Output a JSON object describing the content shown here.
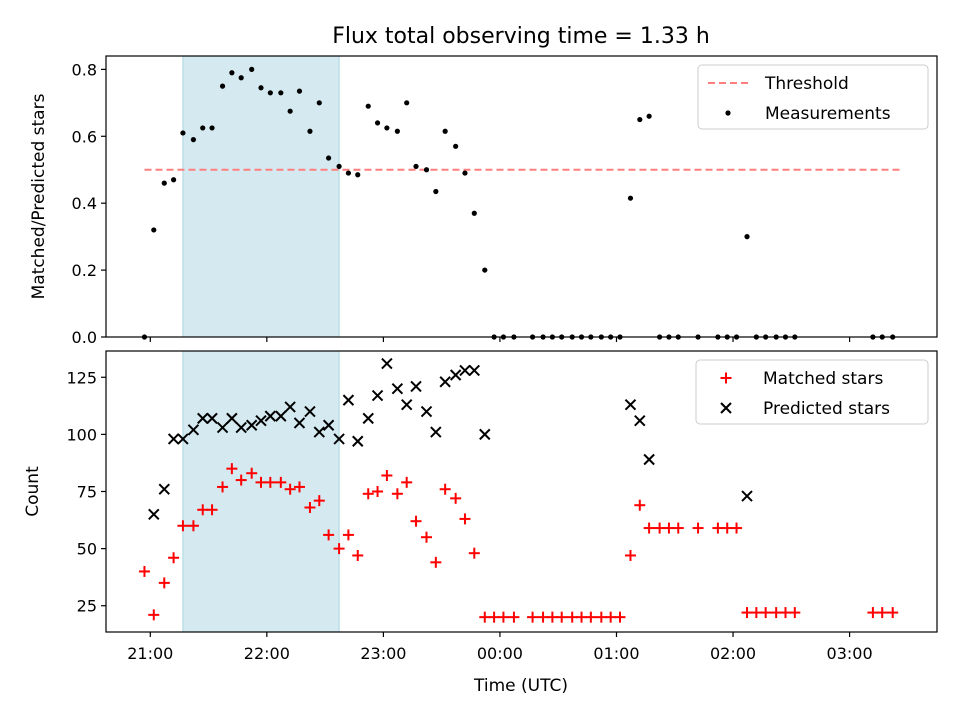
{
  "figure": {
    "title": "Flux total observing time = 1.33 h",
    "xlabel": "Time (UTC)"
  },
  "chart_data": [
    {
      "type": "scatter",
      "panel": "top",
      "ylabel": "Matched/Predicted stars",
      "xlabel": "Time (UTC)",
      "x_unit": "hours since 21:00 UTC (axis ticks shown as clock time)",
      "xlim": [
        -0.38,
        6.75
      ],
      "ylim": [
        0,
        0.84
      ],
      "x_tick_labels": [
        "21:00",
        "22:00",
        "23:00",
        "00:00",
        "01:00",
        "02:00",
        "03:00"
      ],
      "y_ticks": [
        0.0,
        0.2,
        0.4,
        0.6,
        0.8
      ],
      "y_tick_labels": [
        "0.0",
        "0.2",
        "0.4",
        "0.6",
        "0.8"
      ],
      "shaded_span": [
        0.28,
        1.62
      ],
      "threshold": {
        "name": "Threshold",
        "value": 0.5,
        "x_range": [
          -0.05,
          6.43
        ],
        "color": "#ff7f7f",
        "style": "dashed"
      },
      "legend": {
        "position": "upper right",
        "entries": [
          "Threshold",
          "Measurements"
        ]
      },
      "series": [
        {
          "name": "Measurements",
          "color": "#000000",
          "marker": "dot",
          "points": [
            [
              -0.05,
              0.0
            ],
            [
              0.03,
              0.32
            ],
            [
              0.12,
              0.46
            ],
            [
              0.2,
              0.47
            ],
            [
              0.28,
              0.61
            ],
            [
              0.37,
              0.59
            ],
            [
              0.45,
              0.625
            ],
            [
              0.53,
              0.625
            ],
            [
              0.62,
              0.75
            ],
            [
              0.7,
              0.79
            ],
            [
              0.78,
              0.775
            ],
            [
              0.87,
              0.8
            ],
            [
              0.95,
              0.745
            ],
            [
              1.03,
              0.73
            ],
            [
              1.12,
              0.73
            ],
            [
              1.2,
              0.675
            ],
            [
              1.28,
              0.735
            ],
            [
              1.37,
              0.615
            ],
            [
              1.45,
              0.7
            ],
            [
              1.53,
              0.535
            ],
            [
              1.62,
              0.51
            ],
            [
              1.7,
              0.49
            ],
            [
              1.78,
              0.485
            ],
            [
              1.87,
              0.69
            ],
            [
              1.95,
              0.64
            ],
            [
              2.03,
              0.625
            ],
            [
              2.12,
              0.615
            ],
            [
              2.2,
              0.7
            ],
            [
              2.28,
              0.51
            ],
            [
              2.37,
              0.5
            ],
            [
              2.45,
              0.435
            ],
            [
              2.53,
              0.615
            ],
            [
              2.62,
              0.57
            ],
            [
              2.7,
              0.49
            ],
            [
              2.78,
              0.37
            ],
            [
              2.87,
              0.2
            ],
            [
              2.95,
              0.0
            ],
            [
              3.03,
              0.0
            ],
            [
              3.12,
              0.0
            ],
            [
              3.28,
              0.0
            ],
            [
              3.37,
              0.0
            ],
            [
              3.45,
              0.0
            ],
            [
              3.53,
              0.0
            ],
            [
              3.62,
              0.0
            ],
            [
              3.7,
              0.0
            ],
            [
              3.78,
              0.0
            ],
            [
              3.87,
              0.0
            ],
            [
              3.95,
              0.0
            ],
            [
              4.03,
              0.0
            ],
            [
              4.12,
              0.415
            ],
            [
              4.2,
              0.65
            ],
            [
              4.28,
              0.66
            ],
            [
              4.37,
              0.0
            ],
            [
              4.45,
              0.0
            ],
            [
              4.53,
              0.0
            ],
            [
              4.7,
              0.0
            ],
            [
              4.87,
              0.0
            ],
            [
              4.95,
              0.0
            ],
            [
              5.03,
              0.0
            ],
            [
              5.12,
              0.3
            ],
            [
              5.2,
              0.0
            ],
            [
              5.28,
              0.0
            ],
            [
              5.37,
              0.0
            ],
            [
              5.45,
              0.0
            ],
            [
              5.53,
              0.0
            ],
            [
              6.2,
              0.0
            ],
            [
              6.28,
              0.0
            ],
            [
              6.37,
              0.0
            ]
          ]
        }
      ]
    },
    {
      "type": "scatter",
      "panel": "bottom",
      "ylabel": "Count",
      "xlabel": "Time (UTC)",
      "x_unit": "hours since 21:00 UTC (axis ticks shown as clock time)",
      "xlim": [
        -0.38,
        6.75
      ],
      "ylim": [
        13.5,
        136.5
      ],
      "x_tick_labels": [
        "21:00",
        "22:00",
        "23:00",
        "00:00",
        "01:00",
        "02:00",
        "03:00"
      ],
      "y_ticks": [
        25,
        50,
        75,
        100,
        125
      ],
      "y_tick_labels": [
        "25",
        "50",
        "75",
        "100",
        "125"
      ],
      "shaded_span": [
        0.28,
        1.62
      ],
      "legend": {
        "position": "upper right",
        "entries": [
          "Matched stars",
          "Predicted stars"
        ]
      },
      "series": [
        {
          "name": "Matched stars",
          "color": "#ff0000",
          "marker": "plus",
          "points": [
            [
              -0.05,
              40
            ],
            [
              0.03,
              21
            ],
            [
              0.12,
              35
            ],
            [
              0.2,
              46
            ],
            [
              0.28,
              60
            ],
            [
              0.37,
              60
            ],
            [
              0.45,
              67
            ],
            [
              0.53,
              67
            ],
            [
              0.62,
              77
            ],
            [
              0.7,
              85
            ],
            [
              0.78,
              80
            ],
            [
              0.87,
              83
            ],
            [
              0.95,
              79
            ],
            [
              1.03,
              79
            ],
            [
              1.12,
              79
            ],
            [
              1.2,
              76
            ],
            [
              1.28,
              77
            ],
            [
              1.37,
              68
            ],
            [
              1.45,
              71
            ],
            [
              1.53,
              56
            ],
            [
              1.62,
              50
            ],
            [
              1.7,
              56
            ],
            [
              1.78,
              47
            ],
            [
              1.87,
              74
            ],
            [
              1.95,
              75
            ],
            [
              2.03,
              82
            ],
            [
              2.12,
              74
            ],
            [
              2.2,
              79
            ],
            [
              2.28,
              62
            ],
            [
              2.37,
              55
            ],
            [
              2.45,
              44
            ],
            [
              2.53,
              76
            ],
            [
              2.62,
              72
            ],
            [
              2.7,
              63
            ],
            [
              2.78,
              48
            ],
            [
              2.87,
              20
            ],
            [
              2.95,
              20
            ],
            [
              3.03,
              20
            ],
            [
              3.12,
              20
            ],
            [
              3.28,
              20
            ],
            [
              3.37,
              20
            ],
            [
              3.45,
              20
            ],
            [
              3.53,
              20
            ],
            [
              3.62,
              20
            ],
            [
              3.7,
              20
            ],
            [
              3.78,
              20
            ],
            [
              3.87,
              20
            ],
            [
              3.95,
              20
            ],
            [
              4.03,
              20
            ],
            [
              4.12,
              47
            ],
            [
              4.2,
              69
            ],
            [
              4.28,
              59
            ],
            [
              4.37,
              59
            ],
            [
              4.45,
              59
            ],
            [
              4.53,
              59
            ],
            [
              4.7,
              59
            ],
            [
              4.87,
              59
            ],
            [
              4.95,
              59
            ],
            [
              5.03,
              59
            ],
            [
              5.12,
              22
            ],
            [
              5.2,
              22
            ],
            [
              5.28,
              22
            ],
            [
              5.37,
              22
            ],
            [
              5.45,
              22
            ],
            [
              5.53,
              22
            ],
            [
              6.2,
              22
            ],
            [
              6.28,
              22
            ],
            [
              6.37,
              22
            ]
          ]
        },
        {
          "name": "Predicted stars",
          "color": "#000000",
          "marker": "x",
          "points": [
            [
              0.03,
              65
            ],
            [
              0.12,
              76
            ],
            [
              0.2,
              98
            ],
            [
              0.28,
              98
            ],
            [
              0.37,
              102
            ],
            [
              0.45,
              107
            ],
            [
              0.53,
              107
            ],
            [
              0.62,
              103
            ],
            [
              0.7,
              107
            ],
            [
              0.78,
              103
            ],
            [
              0.87,
              104
            ],
            [
              0.95,
              106
            ],
            [
              1.03,
              108
            ],
            [
              1.12,
              108
            ],
            [
              1.2,
              112
            ],
            [
              1.28,
              105
            ],
            [
              1.37,
              110
            ],
            [
              1.45,
              101
            ],
            [
              1.53,
              104
            ],
            [
              1.62,
              98
            ],
            [
              1.7,
              115
            ],
            [
              1.78,
              97
            ],
            [
              1.87,
              107
            ],
            [
              1.95,
              117
            ],
            [
              2.03,
              131
            ],
            [
              2.12,
              120
            ],
            [
              2.2,
              113
            ],
            [
              2.28,
              121
            ],
            [
              2.37,
              110
            ],
            [
              2.45,
              101
            ],
            [
              2.53,
              123
            ],
            [
              2.62,
              126
            ],
            [
              2.7,
              128
            ],
            [
              2.78,
              128
            ],
            [
              2.87,
              100
            ],
            [
              4.12,
              113
            ],
            [
              4.2,
              106
            ],
            [
              4.28,
              89
            ],
            [
              5.12,
              73
            ]
          ]
        }
      ]
    }
  ]
}
